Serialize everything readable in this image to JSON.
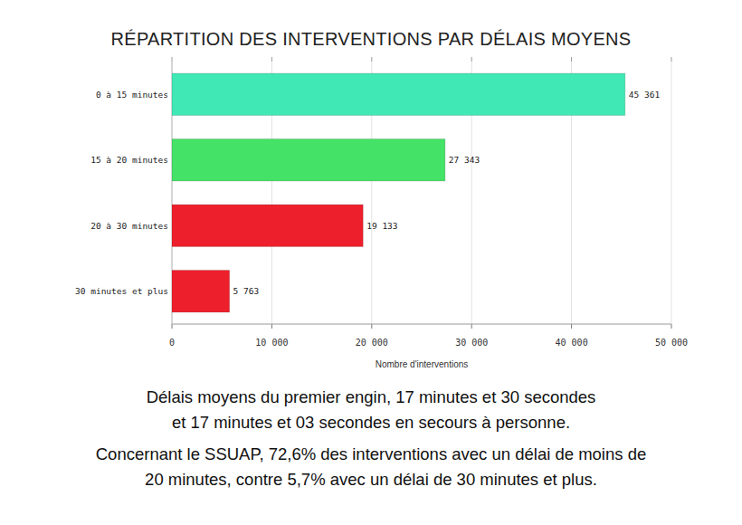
{
  "chart_data": {
    "type": "bar",
    "orientation": "horizontal",
    "title": "RÉPARTITION DES INTERVENTIONS PAR DÉLAIS MOYENS",
    "x_label": "Nombre d'interventions",
    "categories": [
      "0 à 15 minutes",
      "15 à 20 minutes",
      "20 à 30 minutes",
      "30 minutes et plus"
    ],
    "values": [
      45361,
      27343,
      19133,
      5763
    ],
    "value_labels": [
      "45 361",
      "27 343",
      "19 133",
      "5 763"
    ],
    "colors": [
      "#3fe8b4",
      "#44e266",
      "#ee1f2c",
      "#ee1f2c"
    ],
    "xlim": [
      0,
      50000
    ],
    "xticks": [
      0,
      {
        "value": 10000,
        "label": "10 000"
      },
      {
        "value": 20000,
        "label": "20 000"
      },
      {
        "value": 30000,
        "label": "30 000"
      },
      {
        "value": 40000,
        "label": "40 000"
      },
      {
        "value": 50000,
        "label": "50 000"
      }
    ],
    "grid": true,
    "data_labels": true,
    "annotations": [
      "Délais moyens du premier engin, 17 minutes et 30 secondes",
      "et 17 minutes et 03 secondes en secours à personne.",
      "Concernant le SSUAP, 72,6% des interventions avec un délai de moins de",
      "20 minutes, contre 5,7% avec un délai de 30 minutes et plus."
    ]
  }
}
